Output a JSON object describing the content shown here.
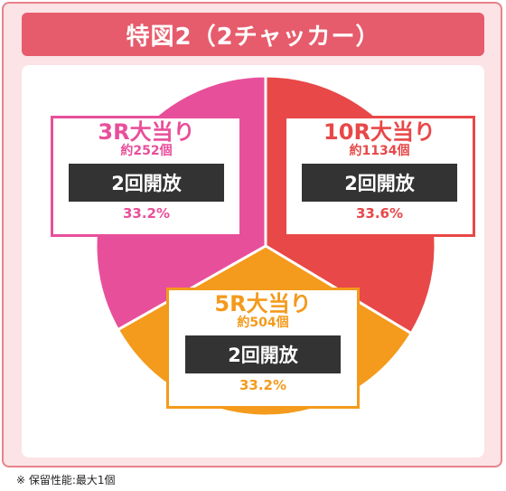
{
  "header": {
    "title": "特図2（2チャッカー）"
  },
  "colors": {
    "frame_border": "#e8828c",
    "frame_bg": "#fbe3e6",
    "title_bg": "#e65c6c",
    "slice_10r": "#e84848",
    "slice_5r": "#f49a1c",
    "slice_3r": "#e84f9a",
    "open_box_bg": "#333333"
  },
  "chart_data": {
    "type": "pie",
    "slices": [
      {
        "name": "10R大当り",
        "count": "約1134個",
        "rounds_open": "2回開放",
        "percent": "33.6%",
        "value": 33.6,
        "color": "#e84848"
      },
      {
        "name": "5R大当り",
        "count": "約504個",
        "rounds_open": "2回開放",
        "percent": "33.2%",
        "value": 33.2,
        "color": "#f49a1c"
      },
      {
        "name": "3R大当り",
        "count": "約252個",
        "rounds_open": "2回開放",
        "percent": "33.2%",
        "value": 33.2,
        "color": "#e84f9a"
      }
    ]
  },
  "footnote": "※ 保留性能:最大1個"
}
